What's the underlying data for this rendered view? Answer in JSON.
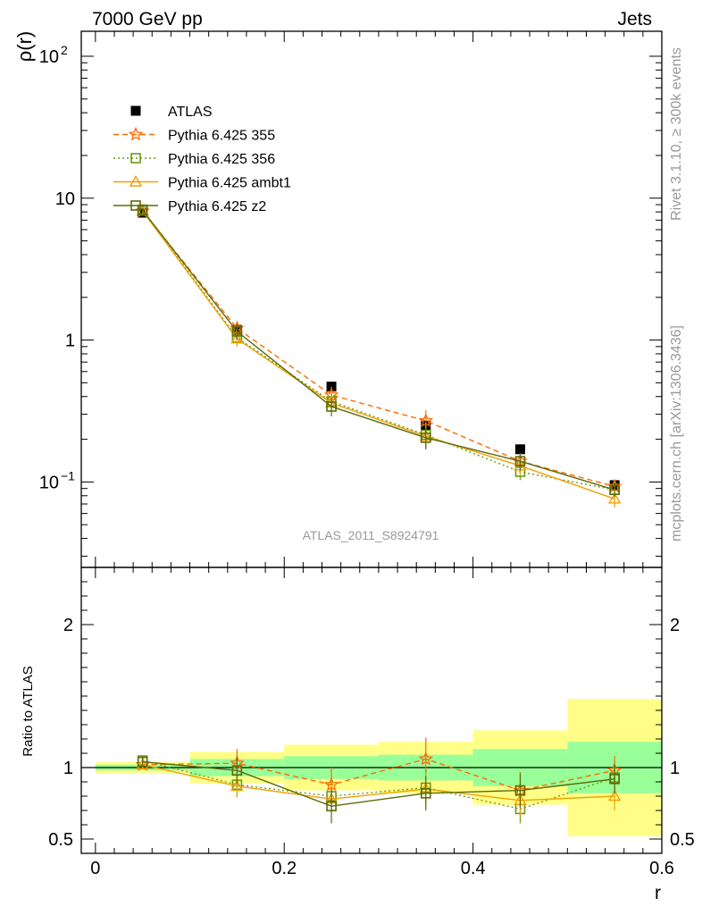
{
  "header": {
    "left": "7000 GeV pp",
    "right": "Jets"
  },
  "side_labels": {
    "rivet": "Rivet 3.1.10, ≥ 300k events",
    "mcplots": "mcplots.cern.ch [arXiv:1306.3436]"
  },
  "analysis_label": "ATLAS_2011_S8924791",
  "chart_data": [
    {
      "type": "scatter",
      "panel": "main",
      "ylabel": "ρ(r)",
      "xlabel": "r",
      "yscale": "log",
      "ylim": [
        0.025,
        150
      ],
      "xlim": [
        -0.015,
        0.6
      ],
      "yticks": [
        {
          "value": 0.1,
          "label": "10",
          "exp": "−1"
        },
        {
          "value": 1,
          "label": "1",
          "exp": ""
        },
        {
          "value": 10,
          "label": "10",
          "exp": ""
        },
        {
          "value": 100,
          "label": "10",
          "exp": "2"
        }
      ],
      "legend_position": "top-left",
      "x": [
        0.05,
        0.15,
        0.25,
        0.35,
        0.45,
        0.55
      ],
      "series": [
        {
          "name": "ATLAS",
          "color": "#000000",
          "marker": "filled-square",
          "line": "none",
          "values": [
            7.9,
            1.18,
            0.47,
            0.25,
            0.17,
            0.095
          ],
          "errors": [
            0.0,
            0.0,
            0.0,
            0.0,
            0.0,
            0.0
          ]
        },
        {
          "name": "Pythia 6.425 355",
          "color": "#ff6a00",
          "marker": "star",
          "line": "dashed",
          "values": [
            8.1,
            1.21,
            0.41,
            0.27,
            0.14,
            0.093
          ],
          "errors": [
            0.25,
            0.15,
            0.06,
            0.05,
            0.02,
            0.01
          ]
        },
        {
          "name": "Pythia 6.425 356",
          "color": "#6b9a10",
          "marker": "open-square",
          "line": "dotted",
          "values": [
            8.3,
            1.04,
            0.37,
            0.215,
            0.118,
            0.088
          ],
          "errors": [
            0.25,
            0.12,
            0.05,
            0.04,
            0.015,
            0.01
          ]
        },
        {
          "name": "Pythia 6.425 ambt1",
          "color": "#f0a000",
          "marker": "open-triangle",
          "line": "solid",
          "values": [
            8.1,
            1.02,
            0.36,
            0.21,
            0.13,
            0.076
          ],
          "errors": [
            0.25,
            0.12,
            0.05,
            0.04,
            0.02,
            0.01
          ]
        },
        {
          "name": "Pythia 6.425 z2",
          "color": "#5b6b0a",
          "marker": "open-square",
          "line": "solid",
          "values": [
            8.2,
            1.15,
            0.34,
            0.205,
            0.14,
            0.088
          ],
          "errors": [
            0.25,
            0.14,
            0.05,
            0.035,
            0.02,
            0.01
          ]
        }
      ]
    },
    {
      "type": "scatter",
      "panel": "ratio",
      "ylabel": "Ratio to ATLAS",
      "xlabel": "r",
      "ylim": [
        0.4,
        2.4
      ],
      "xlim": [
        -0.015,
        0.6
      ],
      "yticks": [
        {
          "value": 0.5,
          "label": "0.5"
        },
        {
          "value": 1,
          "label": "1"
        },
        {
          "value": 2,
          "label": "2"
        }
      ],
      "xticks": [
        {
          "value": 0,
          "label": "0"
        },
        {
          "value": 0.2,
          "label": "0.2"
        },
        {
          "value": 0.4,
          "label": "0.4"
        },
        {
          "value": 0.6,
          "label": "0.6"
        }
      ],
      "bins": [
        [
          0.0,
          0.1
        ],
        [
          0.1,
          0.2
        ],
        [
          0.2,
          0.3
        ],
        [
          0.3,
          0.4
        ],
        [
          0.4,
          0.5
        ],
        [
          0.5,
          0.6
        ]
      ],
      "bands": {
        "yellow_color": "#ffff88",
        "green_color": "#99ff99",
        "yellow": [
          [
            0.96,
            1.04
          ],
          [
            0.89,
            1.11
          ],
          [
            0.84,
            1.16
          ],
          [
            0.82,
            1.18
          ],
          [
            0.74,
            1.26
          ],
          [
            0.52,
            1.48
          ]
        ],
        "green": [
          [
            0.98,
            1.02
          ],
          [
            0.94,
            1.06
          ],
          [
            0.92,
            1.08
          ],
          [
            0.91,
            1.09
          ],
          [
            0.87,
            1.13
          ],
          [
            0.82,
            1.18
          ]
        ]
      },
      "x": [
        0.05,
        0.15,
        0.25,
        0.35,
        0.45,
        0.55
      ],
      "series": [
        {
          "name": "Pythia 6.425 355",
          "color": "#ff6a00",
          "marker": "star",
          "line": "dashed",
          "values": [
            1.02,
            1.03,
            0.88,
            1.06,
            0.84,
            0.98
          ],
          "errors": [
            0.03,
            0.1,
            0.12,
            0.15,
            0.13,
            0.1
          ]
        },
        {
          "name": "Pythia 6.425 356",
          "color": "#6b9a10",
          "marker": "open-square",
          "line": "dotted",
          "values": [
            1.05,
            0.88,
            0.8,
            0.86,
            0.71,
            0.93
          ],
          "errors": [
            0.03,
            0.08,
            0.1,
            0.12,
            0.1,
            0.1
          ]
        },
        {
          "name": "Pythia 6.425 ambt1",
          "color": "#f0a000",
          "marker": "open-triangle",
          "line": "solid",
          "values": [
            1.02,
            0.87,
            0.78,
            0.85,
            0.77,
            0.8
          ],
          "errors": [
            0.03,
            0.08,
            0.1,
            0.12,
            0.1,
            0.1
          ]
        },
        {
          "name": "Pythia 6.425 z2",
          "color": "#5b6b0a",
          "marker": "open-square",
          "line": "solid",
          "values": [
            1.04,
            0.98,
            0.73,
            0.82,
            0.84,
            0.92
          ],
          "errors": [
            0.03,
            0.1,
            0.12,
            0.12,
            0.12,
            0.1
          ]
        }
      ]
    }
  ]
}
